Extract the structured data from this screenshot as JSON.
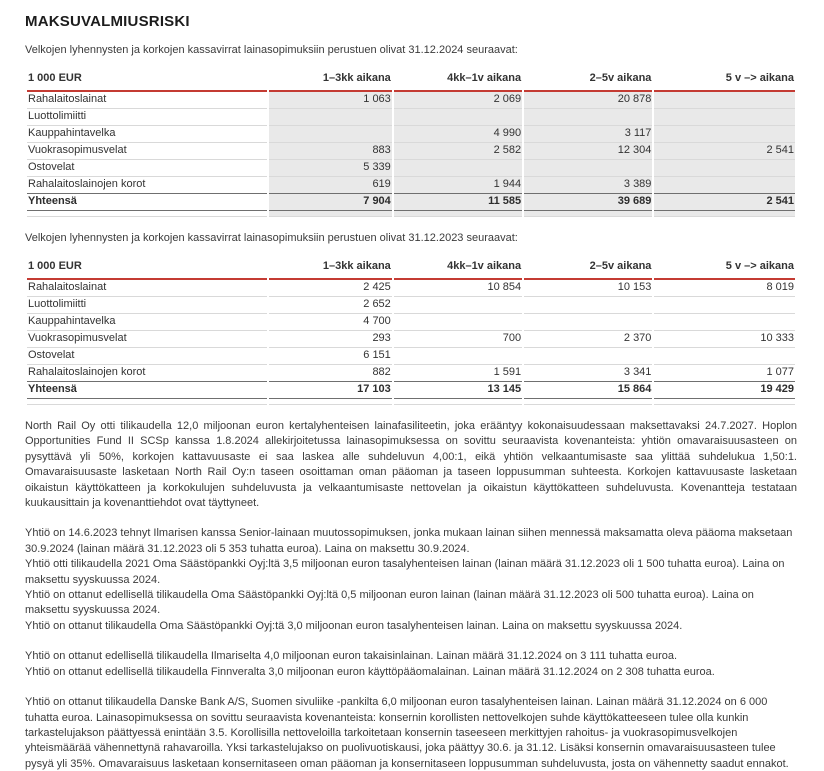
{
  "title": "MAKSUVALMIUSRISKI",
  "colors": {
    "accent_red": "#c43b33",
    "shaded_cell": "#e9e9e9",
    "row_border": "#d9d9d9",
    "total_border": "#6f6f6f",
    "text": "#3b3b3b"
  },
  "tables": [
    {
      "intro": "Velkojen lyhennysten ja korkojen kassavirrat lainasopimuksiin perustuen olivat 31.12.2024 seuraavat:",
      "unit_header": "1 000 EUR",
      "columns": [
        "1–3kk aikana",
        "4kk–1v aikana",
        "2–5v aikana",
        "5 v –> aikana"
      ],
      "shaded_value_columns": true,
      "rows": [
        {
          "label": "Rahalaitoslainat",
          "values": [
            "1 063",
            "2 069",
            "20 878",
            ""
          ]
        },
        {
          "label": "Luottolimiitti",
          "values": [
            "",
            "",
            "",
            ""
          ]
        },
        {
          "label": "Kauppahintavelka",
          "values": [
            "",
            "4 990",
            "3 117",
            ""
          ]
        },
        {
          "label": "Vuokrasopimusvelat",
          "values": [
            "883",
            "2 582",
            "12 304",
            "2 541"
          ]
        },
        {
          "label": "Ostovelat",
          "values": [
            "5 339",
            "",
            "",
            ""
          ]
        },
        {
          "label": "Rahalaitoslainojen korot",
          "values": [
            "619",
            "1 944",
            "3 389",
            ""
          ]
        }
      ],
      "total": {
        "label": "Yhteensä",
        "values": [
          "7 904",
          "11 585",
          "39 689",
          "2 541"
        ]
      }
    },
    {
      "intro": "Velkojen lyhennysten ja korkojen kassavirrat lainasopimuksiin perustuen olivat 31.12.2023 seuraavat:",
      "unit_header": "1 000 EUR",
      "columns": [
        "1–3kk aikana",
        "4kk–1v aikana",
        "2–5v aikana",
        "5 v –> aikana"
      ],
      "shaded_value_columns": false,
      "rows": [
        {
          "label": "Rahalaitoslainat",
          "values": [
            "2 425",
            "10 854",
            "10 153",
            "8 019"
          ]
        },
        {
          "label": "Luottolimiitti",
          "values": [
            "2 652",
            "",
            "",
            ""
          ]
        },
        {
          "label": "Kauppahintavelka",
          "values": [
            "4 700",
            "",
            "",
            ""
          ]
        },
        {
          "label": "Vuokrasopimusvelat",
          "values": [
            "293",
            "700",
            "2 370",
            "10 333"
          ]
        },
        {
          "label": "Ostovelat",
          "values": [
            "6 151",
            "",
            "",
            ""
          ]
        },
        {
          "label": "Rahalaitoslainojen korot",
          "values": [
            "882",
            "1 591",
            "3 341",
            "1 077"
          ]
        }
      ],
      "total": {
        "label": "Yhteensä",
        "values": [
          "17 103",
          "13 145",
          "15 864",
          "19 429"
        ]
      }
    }
  ],
  "paragraphs": [
    {
      "text": "North Rail Oy otti tilikaudella 12,0 miljoonan euron kertalyhenteisen lainafasiliteetin, joka erääntyy kokonaisuudessaan maksettavaksi 24.7.2027. Hoplon Opportunities Fund II SCSp kanssa 1.8.2024 allekirjoitetussa lainasopimuksessa on sovittu seuraavista kovenanteista: yhtiön omavaraisuusasteen on pysyttävä yli 50%, korkojen kattavuusaste ei saa laskea alle suhdeluvun 4,00:1, eikä yhtiön velkaantumisaste saa ylittää suhdelukua 1,50:1. Omavaraisuusaste lasketaan North Rail Oy:n taseen osoittaman oman pääoman ja taseen loppusumman suhteesta. Korkojen kattavuusaste lasketaan oikaistun käyttökatteen ja korkokulujen suhdeluvusta ja velkaantumisaste nettovelan ja oikaistun käyttökatteen suhdeluvusta. Kovenantteja testataan kuukausittain ja kovenanttiehdot ovat täyttyneet."
    },
    {
      "text": "Yhtiö on 14.6.2023 tehnyt Ilmarisen kanssa Senior-lainaan muutossopimuksen, jonka mukaan lainan siihen mennessä maksamatta oleva pääoma maksetaan 30.9.2024 (lainan määrä 31.12.2023 oli 5 353 tuhatta euroa). Laina on maksettu 30.9.2024.\nYhtiö otti tilikaudella 2021 Oma Säästöpankki Oyj:ltä 3,5 miljoonan euron tasalyhenteisen lainan (lainan määrä 31.12.2023 oli 1 500 tuhatta euroa). Laina on maksettu syyskuussa 2024.\nYhtiö on ottanut edellisellä tilikaudella Oma Säästöpankki Oyj:ltä 0,5 miljoonan euron lainan (lainan määrä 31.12.2023 oli 500 tuhatta euroa). Laina on maksettu syyskuussa 2024.\nYhtiö on ottanut tilikaudella Oma Säästöpankki Oyj:tä 3,0 miljoonan euron tasalyhenteisen lainan. Laina on maksettu syyskuussa 2024."
    },
    {
      "text": "Yhtiö on ottanut edellisellä tilikaudella Ilmariselta 4,0 miljoonan euron takaisinlainan. Lainan määrä 31.12.2024 on 3 111 tuhatta euroa.\nYhtiö on ottanut edellisellä tilikaudella Finnveralta 3,0 miljoonan euron käyttöpääomalainan. Lainan määrä 31.12.2024 on 2 308 tuhatta euroa."
    },
    {
      "text": "Yhtiö on ottanut tilikaudella Danske Bank A/S, Suomen sivuliike -pankilta 6,0 miljoonan euron tasalyhenteisen lainan. Lainan määrä 31.12.2024 on 6 000 tuhatta euroa. Lainasopimuksessa on sovittu seuraavista kovenanteista: konsernin korollisten nettovelkojen suhde käyttökatteeseen tulee olla kunkin tarkastelujakson päättyessä enintään 3.5. Korollisilla nettoveloilla tarkoitetaan konsernin taseeseen merkittyjen rahoitus- ja vuokrasopimusvelkojen yhteismäärää vähennettynä rahavaroilla. Yksi tarkastelujakso on puolivuotiskausi, joka päättyy 30.6. ja 31.12. Lisäksi konsernin omavaraisuusasteen tulee pysyä yli 35%. Omavaraisuus lasketaan konsernitaseen oman pääoman ja konsernitaseen loppusumman suhdeluvusta, josta on vähennetty saadut ennakot. Kovenanttiehdot ovat täyttyneet."
    }
  ]
}
